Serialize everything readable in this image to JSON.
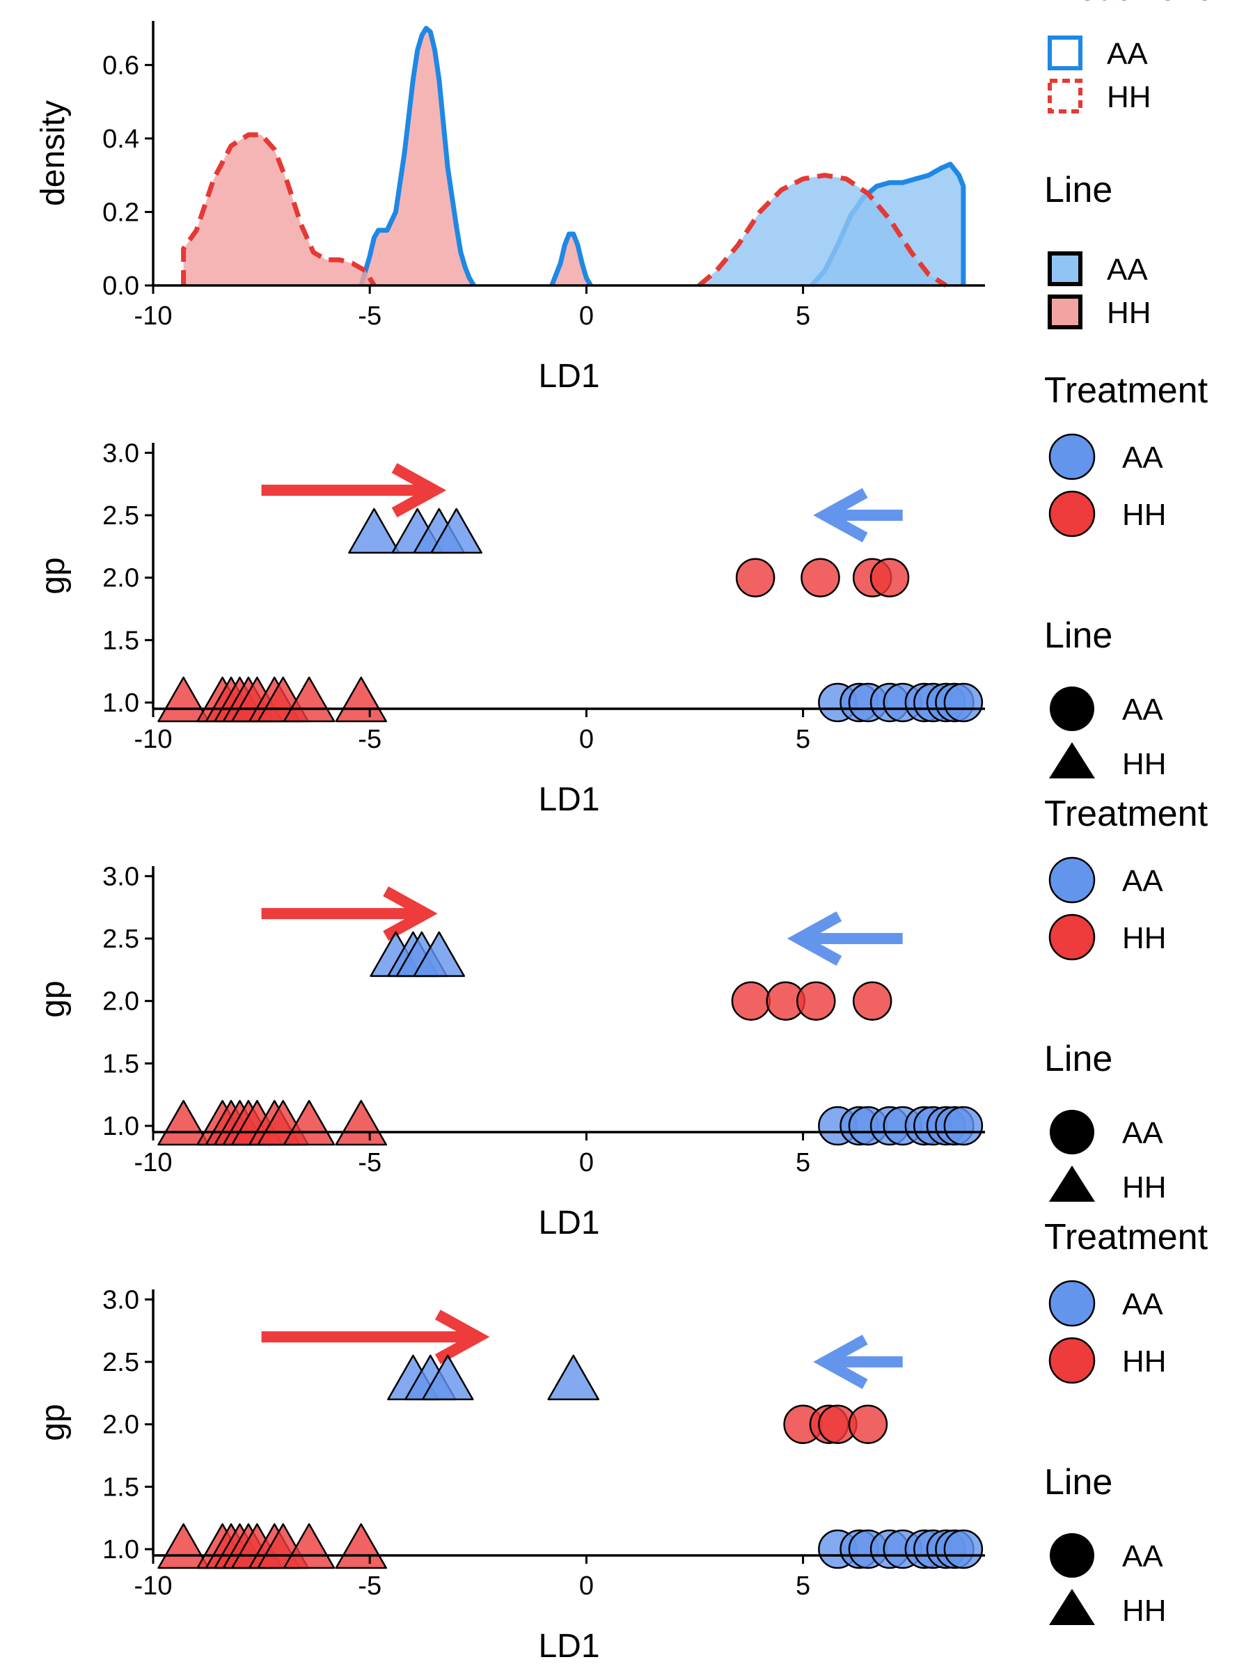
{
  "colors": {
    "aa_line": "#1e88e5",
    "aa_fill": "#90c4f4",
    "hh_line": "#e53935",
    "hh_fill": "#f4a3a3",
    "aa_point": "#6495ed",
    "hh_point": "#ee3b3b",
    "aa_arrow": "#6495ed",
    "hh_arrow": "#ee3b3b"
  },
  "chart_data": [
    {
      "type": "area",
      "xlabel": "LD1",
      "ylabel": "density",
      "xlim": [
        -10,
        9.2
      ],
      "ylim": [
        0,
        0.72
      ],
      "xticks": [
        "-10",
        "-5",
        "0",
        "5"
      ],
      "yticks": [
        "0.0",
        "0.2",
        "0.4",
        "0.6"
      ],
      "grid": false,
      "legend_position": "right",
      "legends": [
        {
          "title": "Treatment",
          "entries": [
            {
              "label": "AA",
              "style": "solid outline"
            },
            {
              "label": "HH",
              "style": "dashed outline"
            }
          ]
        },
        {
          "title": "Line",
          "entries": [
            {
              "label": "AA",
              "style": "blue fill"
            },
            {
              "label": "HH",
              "style": "pink fill"
            }
          ]
        }
      ],
      "series": [
        {
          "treatment": "AA",
          "line": "HH",
          "x": [
            -5.2,
            -5.0,
            -4.9,
            -4.8,
            -4.6,
            -4.4,
            -4.2,
            -4.0,
            -3.9,
            -3.8,
            -3.7,
            -3.6,
            -3.5,
            -3.4,
            -3.3,
            -3.2,
            -3.0,
            -2.9,
            -2.8,
            -2.7,
            -2.6
          ],
          "y": [
            0.0,
            0.08,
            0.13,
            0.15,
            0.15,
            0.2,
            0.36,
            0.56,
            0.64,
            0.68,
            0.7,
            0.69,
            0.64,
            0.56,
            0.44,
            0.32,
            0.16,
            0.09,
            0.05,
            0.02,
            0.0
          ]
        },
        {
          "treatment": "AA",
          "line": "HH",
          "x": [
            -0.8,
            -0.6,
            -0.5,
            -0.4,
            -0.3,
            -0.2,
            -0.1,
            0.0,
            0.1
          ],
          "y": [
            0.0,
            0.06,
            0.11,
            0.14,
            0.14,
            0.11,
            0.06,
            0.02,
            0.0
          ]
        },
        {
          "treatment": "AA",
          "line": "AA",
          "x": [
            5.2,
            5.5,
            5.8,
            6.1,
            6.4,
            6.7,
            7.0,
            7.3,
            7.6,
            7.9,
            8.2,
            8.4,
            8.6,
            8.7,
            8.7
          ],
          "y": [
            0.0,
            0.04,
            0.11,
            0.19,
            0.24,
            0.27,
            0.28,
            0.28,
            0.29,
            0.3,
            0.32,
            0.33,
            0.3,
            0.27,
            0.0
          ]
        },
        {
          "treatment": "HH",
          "line": "HH",
          "x": [
            -9.3,
            -9.3,
            -9.0,
            -8.6,
            -8.2,
            -7.8,
            -7.5,
            -7.2,
            -6.9,
            -6.6,
            -6.3,
            -6.0,
            -5.7,
            -5.4,
            -5.1,
            -4.9
          ],
          "y": [
            0.0,
            0.1,
            0.15,
            0.29,
            0.38,
            0.41,
            0.41,
            0.37,
            0.28,
            0.17,
            0.09,
            0.07,
            0.07,
            0.06,
            0.04,
            0.0
          ]
        },
        {
          "treatment": "HH",
          "line": "AA",
          "x": [
            2.6,
            3.0,
            3.5,
            4.0,
            4.5,
            5.0,
            5.5,
            6.0,
            6.5,
            7.0,
            7.5,
            7.9,
            8.3
          ],
          "y": [
            0.0,
            0.04,
            0.11,
            0.2,
            0.26,
            0.29,
            0.3,
            0.29,
            0.25,
            0.18,
            0.09,
            0.03,
            0.0
          ]
        }
      ]
    },
    {
      "type": "scatter",
      "xlabel": "LD1",
      "ylabel": "gp",
      "xlim": [
        -10,
        9.2
      ],
      "ylim": [
        0.95,
        3.08
      ],
      "xticks": [
        "-10",
        "-5",
        "0",
        "5"
      ],
      "yticks": [
        "1.0",
        "1.5",
        "2.0",
        "2.5",
        "3.0"
      ],
      "grid": false,
      "legend_position": "right",
      "legends": [
        {
          "title": "Treatment",
          "entries": [
            {
              "label": "AA",
              "style": "blue"
            },
            {
              "label": "HH",
              "style": "red"
            }
          ]
        },
        {
          "title": "Line",
          "entries": [
            {
              "label": "AA",
              "style": "circle"
            },
            {
              "label": "HH",
              "style": "triangle"
            }
          ]
        }
      ],
      "series": [
        {
          "treatment": "HH",
          "line": "HH",
          "x": [
            -9.3,
            -8.4,
            -8.2,
            -8.0,
            -7.8,
            -7.6,
            -7.2,
            -7.0,
            -6.4,
            -5.2
          ],
          "y": [
            1.0,
            1.0,
            1.0,
            1.0,
            1.0,
            1.0,
            1.0,
            1.0,
            1.0,
            1.0
          ]
        },
        {
          "treatment": "AA",
          "line": "AA",
          "x": [
            5.8,
            6.3,
            6.5,
            7.0,
            7.3,
            7.8,
            8.0,
            8.3,
            8.5,
            8.7
          ],
          "y": [
            1.0,
            1.0,
            1.0,
            1.0,
            1.0,
            1.0,
            1.0,
            1.0,
            1.0,
            1.0
          ]
        },
        {
          "treatment": "AA",
          "line": "HH",
          "x": [
            -4.9,
            -3.9,
            -3.4,
            -3.0
          ],
          "y": [
            2.35,
            2.35,
            2.35,
            2.35
          ]
        },
        {
          "treatment": "HH",
          "line": "AA",
          "x": [
            3.9,
            5.4,
            6.6,
            7.0
          ],
          "y": [
            2.0,
            2.0,
            2.0,
            2.0
          ]
        }
      ],
      "arrows": [
        {
          "color": "HH",
          "from": [
            -7.5,
            2.7
          ],
          "to": [
            -3.5,
            2.7
          ]
        },
        {
          "color": "AA",
          "from": [
            7.3,
            2.5
          ],
          "to": [
            5.5,
            2.5
          ]
        }
      ]
    },
    {
      "type": "scatter",
      "xlabel": "LD1",
      "ylabel": "gp",
      "xlim": [
        -10,
        9.2
      ],
      "ylim": [
        0.95,
        3.08
      ],
      "xticks": [
        "-10",
        "-5",
        "0",
        "5"
      ],
      "yticks": [
        "1.0",
        "1.5",
        "2.0",
        "2.5",
        "3.0"
      ],
      "grid": false,
      "legend_position": "right",
      "legends": [
        {
          "title": "Treatment",
          "entries": [
            {
              "label": "AA",
              "style": "blue"
            },
            {
              "label": "HH",
              "style": "red"
            }
          ]
        },
        {
          "title": "Line",
          "entries": [
            {
              "label": "AA",
              "style": "circle"
            },
            {
              "label": "HH",
              "style": "triangle"
            }
          ]
        }
      ],
      "series": [
        {
          "treatment": "HH",
          "line": "HH",
          "x": [
            -9.3,
            -8.4,
            -8.2,
            -8.0,
            -7.8,
            -7.6,
            -7.2,
            -7.0,
            -6.4,
            -5.2
          ],
          "y": [
            1.0,
            1.0,
            1.0,
            1.0,
            1.0,
            1.0,
            1.0,
            1.0,
            1.0,
            1.0
          ]
        },
        {
          "treatment": "AA",
          "line": "AA",
          "x": [
            5.8,
            6.3,
            6.5,
            7.0,
            7.3,
            7.8,
            8.0,
            8.3,
            8.5,
            8.7
          ],
          "y": [
            1.0,
            1.0,
            1.0,
            1.0,
            1.0,
            1.0,
            1.0,
            1.0,
            1.0,
            1.0
          ]
        },
        {
          "treatment": "AA",
          "line": "HH",
          "x": [
            -4.4,
            -4.0,
            -3.8,
            -3.4
          ],
          "y": [
            2.35,
            2.35,
            2.35,
            2.35
          ]
        },
        {
          "treatment": "HH",
          "line": "AA",
          "x": [
            3.8,
            4.6,
            5.3,
            6.6
          ],
          "y": [
            2.0,
            2.0,
            2.0,
            2.0
          ]
        }
      ],
      "arrows": [
        {
          "color": "HH",
          "from": [
            -7.5,
            2.7
          ],
          "to": [
            -3.7,
            2.7
          ]
        },
        {
          "color": "AA",
          "from": [
            7.3,
            2.5
          ],
          "to": [
            4.9,
            2.5
          ]
        }
      ]
    },
    {
      "type": "scatter",
      "xlabel": "LD1",
      "ylabel": "gp",
      "xlim": [
        -10,
        9.2
      ],
      "ylim": [
        0.95,
        3.08
      ],
      "xticks": [
        "-10",
        "-5",
        "0",
        "5"
      ],
      "yticks": [
        "1.0",
        "1.5",
        "2.0",
        "2.5",
        "3.0"
      ],
      "grid": false,
      "legend_position": "right",
      "legends": [
        {
          "title": "Treatment",
          "entries": [
            {
              "label": "AA",
              "style": "blue"
            },
            {
              "label": "HH",
              "style": "red"
            }
          ]
        },
        {
          "title": "Line",
          "entries": [
            {
              "label": "AA",
              "style": "circle"
            },
            {
              "label": "HH",
              "style": "triangle"
            }
          ]
        }
      ],
      "series": [
        {
          "treatment": "HH",
          "line": "HH",
          "x": [
            -9.3,
            -8.4,
            -8.2,
            -8.0,
            -7.8,
            -7.6,
            -7.2,
            -7.0,
            -6.4,
            -5.2
          ],
          "y": [
            1.0,
            1.0,
            1.0,
            1.0,
            1.0,
            1.0,
            1.0,
            1.0,
            1.0,
            1.0
          ]
        },
        {
          "treatment": "AA",
          "line": "AA",
          "x": [
            5.8,
            6.3,
            6.5,
            7.0,
            7.3,
            7.8,
            8.0,
            8.3,
            8.5,
            8.7
          ],
          "y": [
            1.0,
            1.0,
            1.0,
            1.0,
            1.0,
            1.0,
            1.0,
            1.0,
            1.0,
            1.0
          ]
        },
        {
          "treatment": "AA",
          "line": "HH",
          "x": [
            -4.0,
            -3.6,
            -3.2,
            -0.3
          ],
          "y": [
            2.35,
            2.35,
            2.35,
            2.35
          ]
        },
        {
          "treatment": "HH",
          "line": "AA",
          "x": [
            5.0,
            5.6,
            5.8,
            6.5
          ],
          "y": [
            2.0,
            2.0,
            2.0,
            2.0
          ]
        }
      ],
      "arrows": [
        {
          "color": "HH",
          "from": [
            -7.5,
            2.7
          ],
          "to": [
            -2.5,
            2.7
          ]
        },
        {
          "color": "AA",
          "from": [
            7.3,
            2.5
          ],
          "to": [
            5.5,
            2.5
          ]
        }
      ]
    }
  ]
}
